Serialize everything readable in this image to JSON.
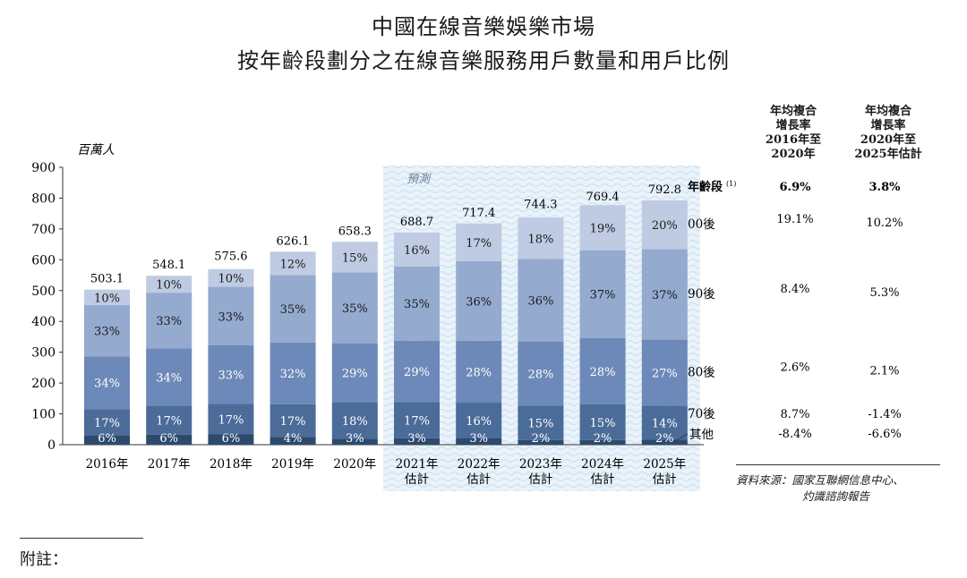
{
  "title_line1": "中國在線音樂娛樂市場",
  "title_line2": "按年齡段劃分之在線音樂服務用戶數量和用戶比例",
  "chart_data": {
    "type": "bar",
    "stacked": true,
    "unit_label": "百萬人",
    "ylim": [
      0,
      900
    ],
    "yticks": [
      0,
      100,
      200,
      300,
      400,
      500,
      600,
      700,
      800,
      900
    ],
    "forecast_label": "預測",
    "categories": [
      [
        "2016年"
      ],
      [
        "2017年"
      ],
      [
        "2018年"
      ],
      [
        "2019年"
      ],
      [
        "2020年"
      ],
      [
        "2021年",
        "估計"
      ],
      [
        "2022年",
        "估計"
      ],
      [
        "2023年",
        "估計"
      ],
      [
        "2024年",
        "估計"
      ],
      [
        "2025年",
        "估計"
      ]
    ],
    "forecast_from_index": 5,
    "totals": [
      503.1,
      548.1,
      575.6,
      626.1,
      658.3,
      688.7,
      717.4,
      744.3,
      769.4,
      792.8
    ],
    "series": [
      {
        "name": "其他",
        "color": "#2b4a6e",
        "shares": [
          "6%",
          "6%",
          "6%",
          "4%",
          "3%",
          "3%",
          "3%",
          "2%",
          "2%",
          "2%"
        ]
      },
      {
        "name": "70後",
        "color": "#4b6b99",
        "shares": [
          "17%",
          "17%",
          "17%",
          "17%",
          "18%",
          "17%",
          "16%",
          "15%",
          "15%",
          "14%"
        ]
      },
      {
        "name": "80後",
        "color": "#6d89b9",
        "shares": [
          "34%",
          "34%",
          "33%",
          "32%",
          "29%",
          "29%",
          "28%",
          "28%",
          "28%",
          "27%"
        ]
      },
      {
        "name": "90後",
        "color": "#94aacf",
        "shares": [
          "33%",
          "33%",
          "33%",
          "35%",
          "35%",
          "35%",
          "36%",
          "36%",
          "37%",
          "37%"
        ]
      },
      {
        "name": "00後",
        "color": "#bfcbe2",
        "shares": [
          "10%",
          "10%",
          "10%",
          "12%",
          "15%",
          "16%",
          "17%",
          "18%",
          "19%",
          "20%"
        ]
      }
    ],
    "cagr": {
      "header_col1": [
        "年均複合",
        "增長率",
        "2016年至",
        "2020年"
      ],
      "header_col2": [
        "年均複合",
        "增長率",
        "2020年至",
        "2025年估計"
      ],
      "row_label": "年齡段",
      "row_label_sup": "(1)",
      "total": [
        "6.9%",
        "3.8%"
      ],
      "rows": [
        {
          "label": "00後",
          "v1": "19.1%",
          "v2": "10.2%"
        },
        {
          "label": "90後",
          "v1": "8.4%",
          "v2": "5.3%"
        },
        {
          "label": "80後",
          "v1": "2.6%",
          "v2": "2.1%"
        },
        {
          "label": "70後",
          "v1": "8.7%",
          "v2": "-1.4%"
        },
        {
          "label": "其他",
          "v1": "-8.4%",
          "v2": "-6.6%"
        }
      ]
    }
  },
  "source": [
    "資料來源：國家互聯網信息中心、",
    "灼識諮詢報告"
  ],
  "footnote_label": "附註："
}
